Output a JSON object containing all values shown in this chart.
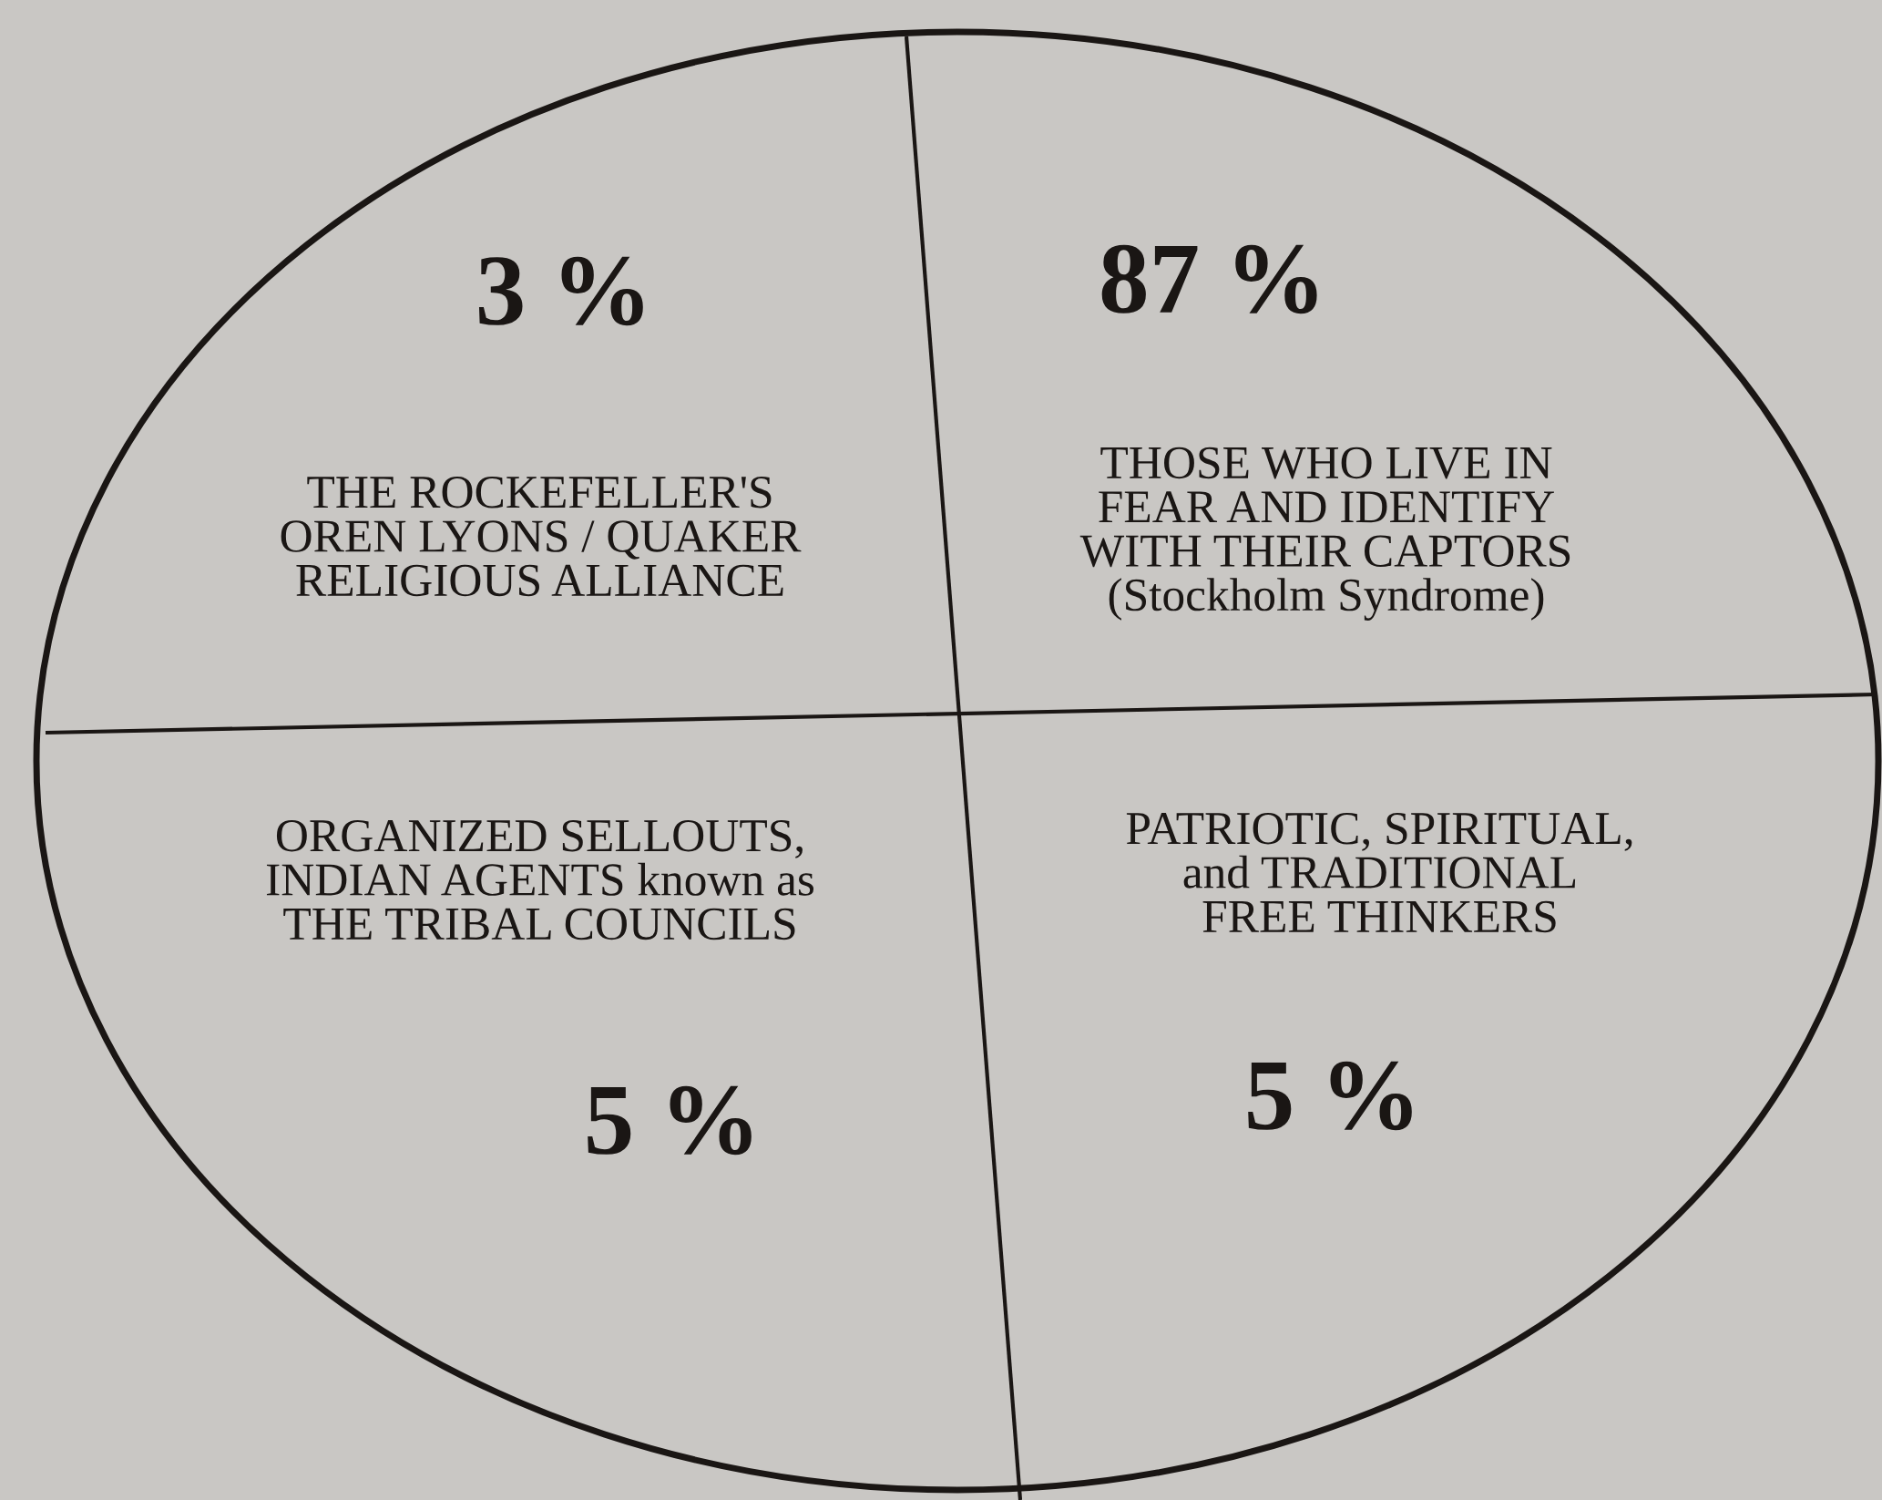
{
  "chart_data": {
    "type": "other",
    "categories": [
      "THE ROCKEFELLER'S\nOREN LYONS / QUAKER\nRELIGIOUS ALLIANCE",
      "THOSE WHO LIVE IN\nFEAR AND IDENTIFY\nWITH THEIR CAPTORS\n(Stockholm Syndrome)",
      "ORGANIZED SELLOUTS,\nINDIAN AGENTS known as\nTHE TRIBAL COUNCILS",
      "PATRIOTIC, SPIRITUAL,\nand TRADITIONAL\nFREE THINKERS"
    ],
    "values": [
      3,
      87,
      5,
      5
    ],
    "value_labels": [
      "3 %",
      "87 %",
      "5 %",
      "5 %"
    ],
    "color": "#c9c7c4"
  }
}
